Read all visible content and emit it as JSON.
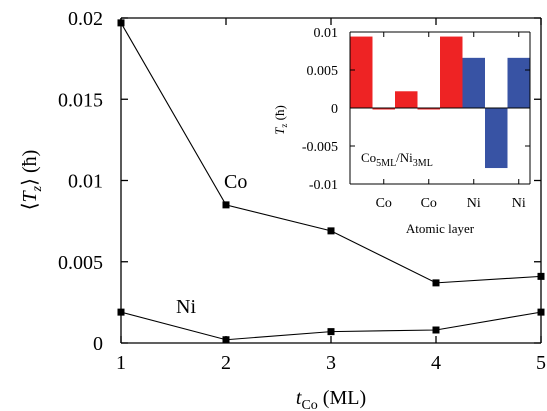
{
  "chart_data": [
    {
      "type": "line",
      "x": [
        1,
        2,
        3,
        4,
        5
      ],
      "series": [
        {
          "name": "Co",
          "values": [
            0.0197,
            0.0085,
            0.0069,
            0.0037,
            0.0041
          ]
        },
        {
          "name": "Ni",
          "values": [
            0.0019,
            0.0002,
            0.0007,
            0.0008,
            0.0019
          ]
        }
      ],
      "xlabel_main": "t",
      "xlabel_sub": "Co",
      "xlabel_unit": " (ML)",
      "ylabel": "⟨T_z⟩ (ħ)",
      "xlim": [
        1,
        5
      ],
      "ylim": [
        0,
        0.02
      ],
      "xticks": [
        1,
        2,
        3,
        4,
        5
      ],
      "yticks": [
        0,
        0.005,
        0.01,
        0.015,
        0.02
      ],
      "ytick_labels": [
        "0",
        "0.005",
        "0.01",
        "0.015",
        "0.02"
      ],
      "grid": false
    },
    {
      "type": "bar",
      "values": [
        0.0094,
        -0.0002,
        0.0022,
        -0.0002,
        0.0094,
        0.0066,
        -0.0079,
        0.0066
      ],
      "bar_colors": [
        "#ee2324",
        "#ee2324",
        "#ee2324",
        "#ee2324",
        "#ee2324",
        "#3853a4",
        "#3853a4",
        "#3853a4"
      ],
      "xtick_positions": [
        1.5,
        3.5,
        5.5,
        7.5
      ],
      "xtick_labels": [
        "Co",
        "Co",
        "Ni",
        "Ni"
      ],
      "xlabel": "Atomic layer",
      "ylabel": "T_z (ħ)",
      "ylim": [
        -0.01,
        0.01
      ],
      "yticks": [
        -0.01,
        -0.005,
        0,
        0.005,
        0.01
      ],
      "ytick_labels": [
        "-0.01",
        "-0.005",
        "0",
        "0.005",
        "0.01"
      ],
      "annotation": "Co5ML/Ni3ML",
      "grid": false
    }
  ],
  "series_labels": [
    "Co",
    "Ni"
  ],
  "main_ylabel_parts": {
    "left": "⟨",
    "T": "T",
    "sub": "z",
    "right": "⟩ (ħ)"
  },
  "inset_ylabel_parts": {
    "T": "T",
    "sub": "z",
    "rest": " (ħ)"
  },
  "inset_annotation_parts": {
    "a": "Co",
    "b": "5ML",
    "c": "/Ni",
    "d": "3ML"
  }
}
